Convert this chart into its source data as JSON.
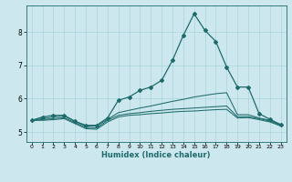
{
  "xlabel": "Humidex (Indice chaleur)",
  "bg_color": "#cce8ee",
  "grid_color": "#aad4dc",
  "line_color": "#1e6b6b",
  "x_ticks": [
    0,
    1,
    2,
    3,
    4,
    5,
    6,
    7,
    8,
    9,
    10,
    11,
    12,
    13,
    14,
    15,
    16,
    17,
    18,
    19,
    20,
    21,
    22,
    23
  ],
  "y_ticks": [
    5,
    6,
    7,
    8
  ],
  "ylim": [
    4.7,
    8.8
  ],
  "xlim": [
    -0.5,
    23.5
  ],
  "lines": [
    {
      "y": [
        5.35,
        5.45,
        5.5,
        5.5,
        5.32,
        5.2,
        5.2,
        5.42,
        5.95,
        6.05,
        6.25,
        6.35,
        6.55,
        7.15,
        7.9,
        8.55,
        8.05,
        7.72,
        6.95,
        6.35,
        6.35,
        5.55,
        5.38,
        5.22
      ],
      "marker": true
    },
    {
      "y": [
        5.35,
        5.4,
        5.45,
        5.48,
        5.32,
        5.18,
        5.18,
        5.38,
        5.58,
        5.65,
        5.72,
        5.78,
        5.85,
        5.92,
        5.98,
        6.05,
        6.1,
        6.15,
        6.18,
        5.52,
        5.52,
        5.42,
        5.35,
        5.22
      ],
      "marker": false
    },
    {
      "y": [
        5.35,
        5.37,
        5.4,
        5.43,
        5.28,
        5.14,
        5.12,
        5.35,
        5.5,
        5.55,
        5.58,
        5.62,
        5.65,
        5.68,
        5.7,
        5.72,
        5.74,
        5.76,
        5.78,
        5.46,
        5.46,
        5.4,
        5.33,
        5.2
      ],
      "marker": false
    },
    {
      "y": [
        5.35,
        5.35,
        5.37,
        5.4,
        5.25,
        5.1,
        5.08,
        5.3,
        5.45,
        5.5,
        5.52,
        5.55,
        5.57,
        5.6,
        5.62,
        5.63,
        5.65,
        5.67,
        5.68,
        5.42,
        5.43,
        5.37,
        5.3,
        5.18
      ],
      "marker": false
    }
  ]
}
